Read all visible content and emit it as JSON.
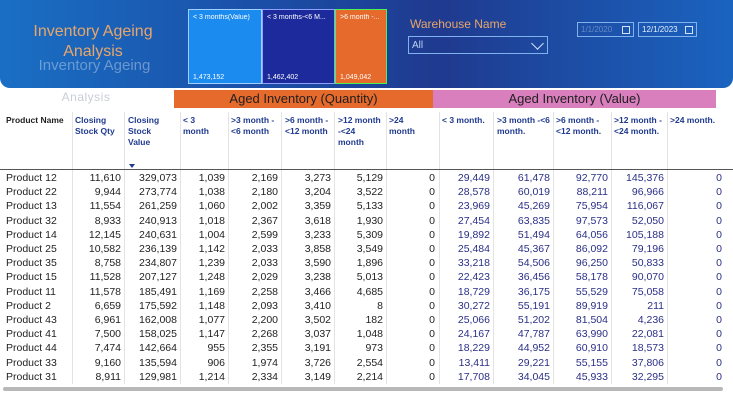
{
  "header": {
    "title": "Inventory Ageing Analysis",
    "title_shadow": "Inventory Ageing",
    "cards": [
      {
        "title": "< 3 months(Value)",
        "value": "1,473,152"
      },
      {
        "title": "< 3 months-<6 M...",
        "value": "1,462,402"
      },
      {
        "title": ">6 month -...",
        "value": "1,049,042"
      }
    ],
    "warehouse": {
      "label": "Warehouse Name",
      "selected": "All"
    },
    "dates": {
      "start": "1/1/2020",
      "end": "12/1/2023"
    }
  },
  "ghost_text": "Analysis",
  "bands": {
    "quantity": "Aged Inventory (Quantity)",
    "value": "Aged Inventory (Value)"
  },
  "columns": {
    "product": "Product Name",
    "closing_qty": "Closing Stock Qty",
    "closing_val": "Closing Stock Value",
    "q1": "< 3 month",
    "q2": ">3 month -<6 month",
    "q3": ">6 month -<12 month",
    "q4": ">12 month -<24 month",
    "q5": ">24 month",
    "v1": "< 3 month.",
    "v2": ">3 month -<6 month.",
    "v3": ">6 month -<12 month.",
    "v4": ">12 month -<24 month.",
    "v5": ">24 month."
  },
  "rows": [
    [
      "Product 12",
      "11,610",
      "329,073",
      "1,039",
      "2,169",
      "3,273",
      "5,129",
      "0",
      "29,449",
      "61,478",
      "92,770",
      "145,376",
      "0"
    ],
    [
      "Product 22",
      "9,944",
      "273,774",
      "1,038",
      "2,180",
      "3,204",
      "3,522",
      "0",
      "28,578",
      "60,019",
      "88,211",
      "96,966",
      "0"
    ],
    [
      "Product 13",
      "11,554",
      "261,259",
      "1,060",
      "2,002",
      "3,359",
      "5,133",
      "0",
      "23,969",
      "45,269",
      "75,954",
      "116,067",
      "0"
    ],
    [
      "Product 32",
      "8,933",
      "240,913",
      "1,018",
      "2,367",
      "3,618",
      "1,930",
      "0",
      "27,454",
      "63,835",
      "97,573",
      "52,050",
      "0"
    ],
    [
      "Product 14",
      "12,145",
      "240,631",
      "1,004",
      "2,599",
      "3,233",
      "5,309",
      "0",
      "19,892",
      "51,494",
      "64,056",
      "105,188",
      "0"
    ],
    [
      "Product 25",
      "10,582",
      "236,139",
      "1,142",
      "2,033",
      "3,858",
      "3,549",
      "0",
      "25,484",
      "45,367",
      "86,092",
      "79,196",
      "0"
    ],
    [
      "Product 35",
      "8,758",
      "234,807",
      "1,239",
      "2,033",
      "3,590",
      "1,896",
      "0",
      "33,218",
      "54,506",
      "96,250",
      "50,833",
      "0"
    ],
    [
      "Product 15",
      "11,528",
      "207,127",
      "1,248",
      "2,029",
      "3,238",
      "5,013",
      "0",
      "22,423",
      "36,456",
      "58,178",
      "90,070",
      "0"
    ],
    [
      "Product 11",
      "11,578",
      "185,491",
      "1,169",
      "2,258",
      "3,466",
      "4,685",
      "0",
      "18,729",
      "36,175",
      "55,529",
      "75,058",
      "0"
    ],
    [
      "Product 2",
      "6,659",
      "175,592",
      "1,148",
      "2,093",
      "3,410",
      "8",
      "0",
      "30,272",
      "55,191",
      "89,919",
      "211",
      "0"
    ],
    [
      "Product 43",
      "6,961",
      "162,008",
      "1,077",
      "2,200",
      "3,502",
      "182",
      "0",
      "25,066",
      "51,202",
      "81,504",
      "4,236",
      "0"
    ],
    [
      "Product 41",
      "7,500",
      "158,025",
      "1,147",
      "2,268",
      "3,037",
      "1,048",
      "0",
      "24,167",
      "47,787",
      "63,990",
      "22,081",
      "0"
    ],
    [
      "Product 44",
      "7,474",
      "142,664",
      "955",
      "2,355",
      "3,191",
      "973",
      "0",
      "18,229",
      "44,952",
      "60,910",
      "18,573",
      "0"
    ],
    [
      "Product 33",
      "9,160",
      "135,594",
      "906",
      "1,974",
      "3,726",
      "2,554",
      "0",
      "13,411",
      "29,221",
      "55,155",
      "37,806",
      "0"
    ],
    [
      "Product 31",
      "8,911",
      "129,981",
      "1,214",
      "2,334",
      "3,149",
      "2,214",
      "0",
      "17,708",
      "34,045",
      "45,933",
      "32,295",
      "0"
    ]
  ]
}
